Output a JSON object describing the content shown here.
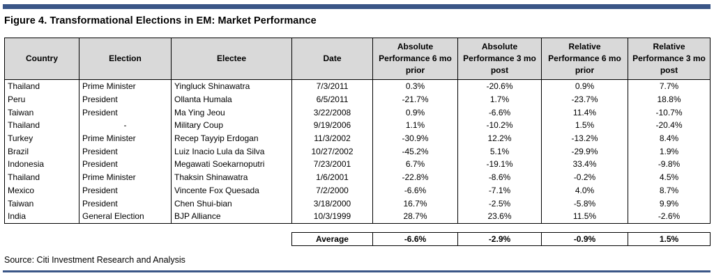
{
  "title": "Figure 4. Transformational Elections in EM: Market Performance",
  "columns": [
    {
      "key": "country",
      "label": "Country"
    },
    {
      "key": "election",
      "label": "Election"
    },
    {
      "key": "electee",
      "label": "Electee"
    },
    {
      "key": "date",
      "label": "Date"
    },
    {
      "key": "abs_prior",
      "label": "Absolute Performance 6 mo prior"
    },
    {
      "key": "abs_post",
      "label": "Absolute Performance 3 mo post"
    },
    {
      "key": "rel_prior",
      "label": "Relative Performance 6 mo prior"
    },
    {
      "key": "rel_post",
      "label": "Relative Performance 3 mo post"
    }
  ],
  "rows": [
    {
      "country": "Thailand",
      "election": "Prime Minister",
      "electee": "Yingluck Shinawatra",
      "date": "7/3/2011",
      "abs_prior": "0.3%",
      "abs_post": "-20.6%",
      "rel_prior": "0.9%",
      "rel_post": "7.7%"
    },
    {
      "country": "Peru",
      "election": "President",
      "electee": "Ollanta Humala",
      "date": "6/5/2011",
      "abs_prior": "-21.7%",
      "abs_post": "1.7%",
      "rel_prior": "-23.7%",
      "rel_post": "18.8%"
    },
    {
      "country": "Taiwan",
      "election": "President",
      "electee": "Ma Ying Jeou",
      "date": "3/22/2008",
      "abs_prior": "0.9%",
      "abs_post": "-6.6%",
      "rel_prior": "11.4%",
      "rel_post": "-10.7%"
    },
    {
      "country": "Thailand",
      "election": "-",
      "electee": "Military Coup",
      "date": "9/19/2006",
      "abs_prior": "1.1%",
      "abs_post": "-10.2%",
      "rel_prior": "1.5%",
      "rel_post": "-20.4%"
    },
    {
      "country": "Turkey",
      "election": "Prime Minister",
      "electee": "Recep Tayyip Erdogan",
      "date": "11/3/2002",
      "abs_prior": "-30.9%",
      "abs_post": "12.2%",
      "rel_prior": "-13.2%",
      "rel_post": "8.4%"
    },
    {
      "country": "Brazil",
      "election": "President",
      "electee": "Luiz Inacio Lula da Silva",
      "date": "10/27/2002",
      "abs_prior": "-45.2%",
      "abs_post": "5.1%",
      "rel_prior": "-29.9%",
      "rel_post": "1.9%"
    },
    {
      "country": "Indonesia",
      "election": "President",
      "electee": "Megawati Soekarnoputri",
      "date": "7/23/2001",
      "abs_prior": "6.7%",
      "abs_post": "-19.1%",
      "rel_prior": "33.4%",
      "rel_post": "-9.8%"
    },
    {
      "country": "Thailand",
      "election": "Prime Minister",
      "electee": "Thaksin Shinawatra",
      "date": "1/6/2001",
      "abs_prior": "-22.8%",
      "abs_post": "-8.6%",
      "rel_prior": "-0.2%",
      "rel_post": "4.5%"
    },
    {
      "country": "Mexico",
      "election": "President",
      "electee": "Vincente Fox Quesada",
      "date": "7/2/2000",
      "abs_prior": "-6.6%",
      "abs_post": "-7.1%",
      "rel_prior": "4.0%",
      "rel_post": "8.7%"
    },
    {
      "country": "Taiwan",
      "election": "President",
      "electee": "Chen Shui-bian",
      "date": "3/18/2000",
      "abs_prior": "16.7%",
      "abs_post": "-2.5%",
      "rel_prior": "-5.8%",
      "rel_post": "9.9%"
    },
    {
      "country": "India",
      "election": "General Election",
      "electee": "BJP Alliance",
      "date": "10/3/1999",
      "abs_prior": "28.7%",
      "abs_post": "23.6%",
      "rel_prior": "11.5%",
      "rel_post": "-2.6%"
    }
  ],
  "average": {
    "label": "Average",
    "abs_prior": "-6.6%",
    "abs_post": "-2.9%",
    "rel_prior": "-0.9%",
    "rel_post": "1.5%"
  },
  "source": "Source: Citi Investment Research and Analysis",
  "colors": {
    "header_bg": "#d9d9d9",
    "rule": "#3a5687"
  }
}
